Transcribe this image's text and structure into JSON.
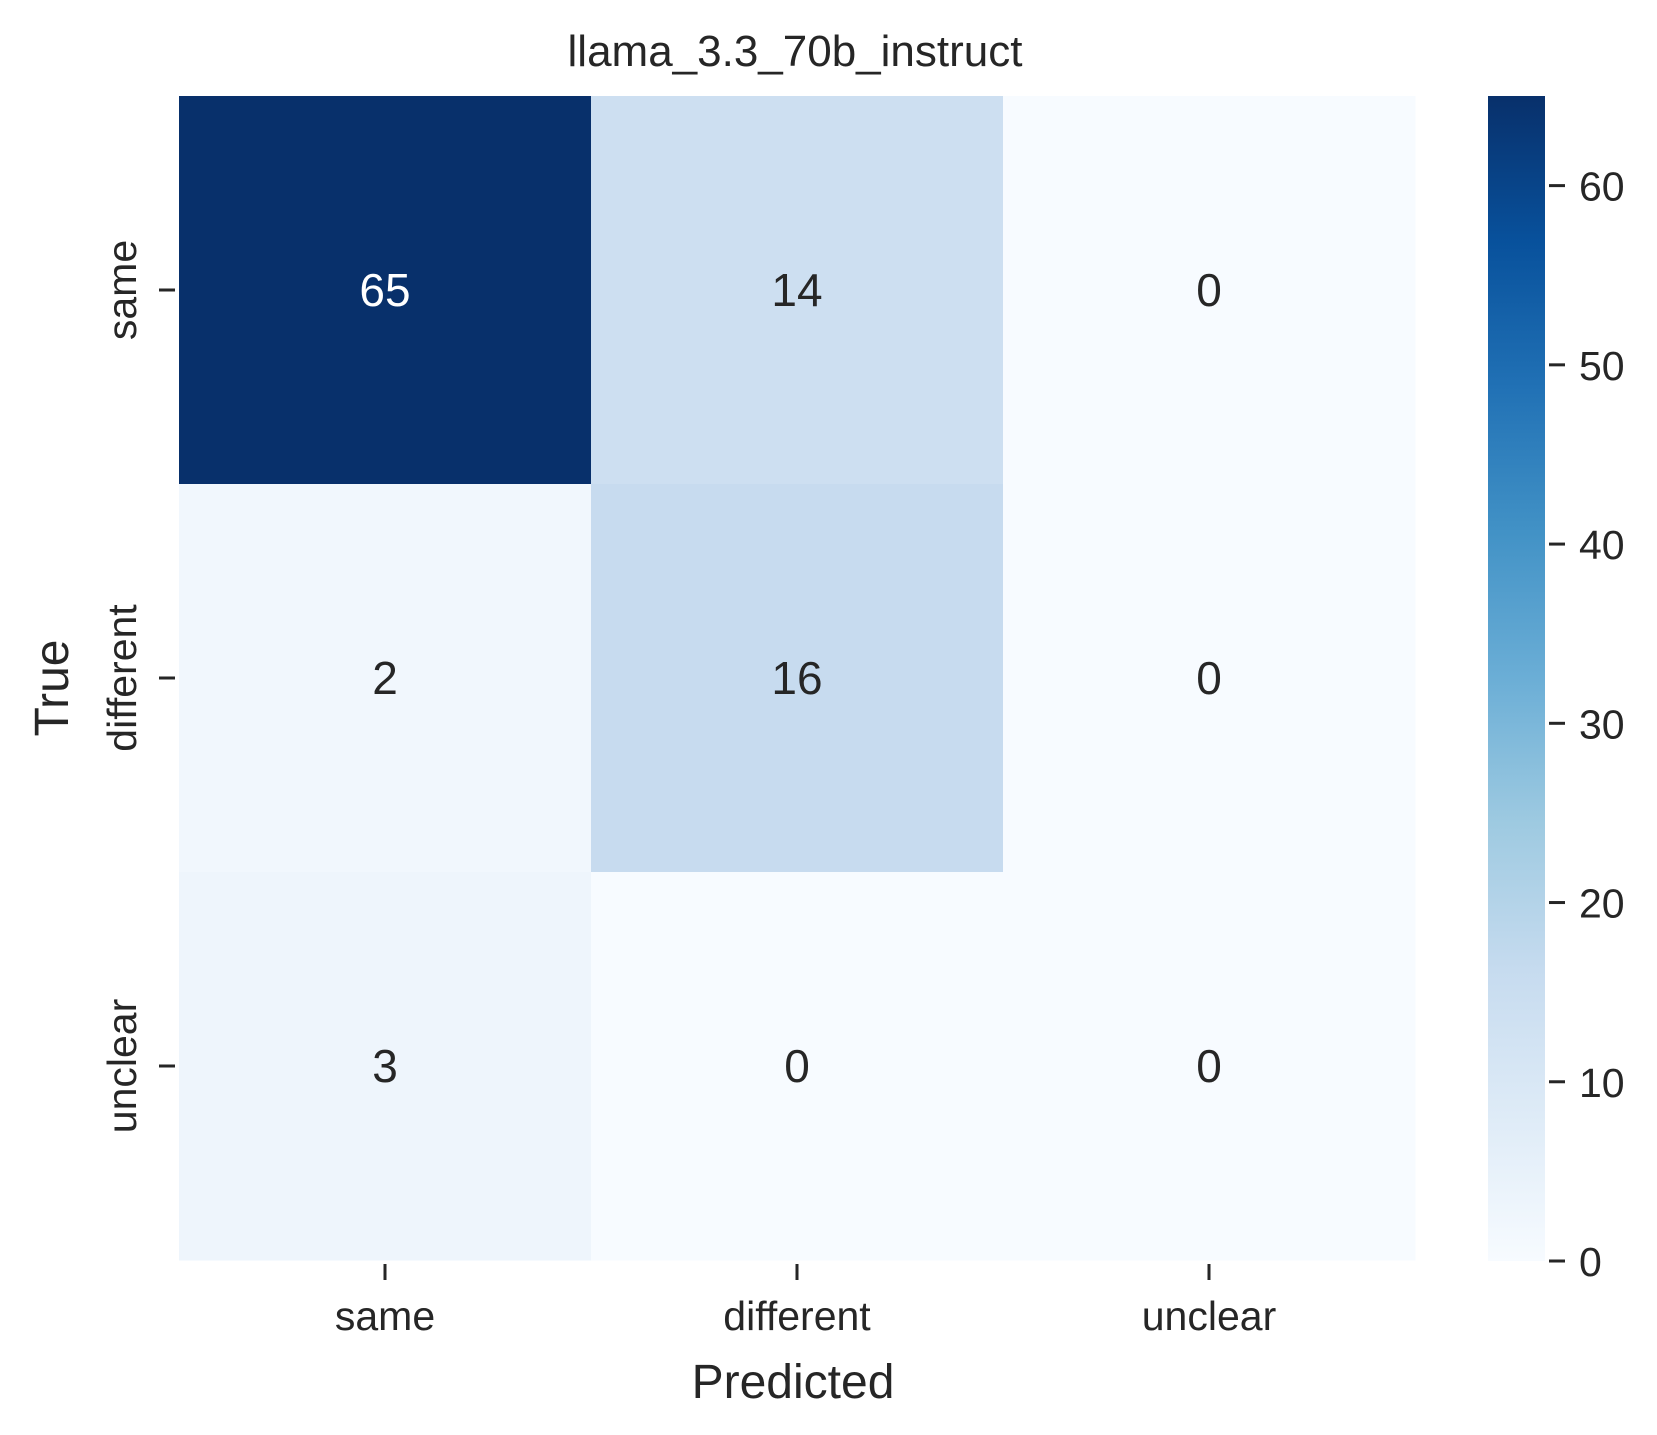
{
  "chart_data": {
    "type": "heatmap",
    "title": "llama_3.3_70b_instruct",
    "xlabel": "Predicted",
    "ylabel": "True",
    "x_categories": [
      "same",
      "different",
      "unclear"
    ],
    "y_categories": [
      "same",
      "different",
      "unclear"
    ],
    "matrix": [
      [
        65,
        14,
        0
      ],
      [
        2,
        16,
        0
      ],
      [
        3,
        0,
        0
      ]
    ],
    "colormap": "Blues",
    "vmin": 0,
    "vmax": 65,
    "colorbar_ticks": [
      0,
      10,
      20,
      30,
      40,
      50,
      60
    ],
    "grid": false
  }
}
